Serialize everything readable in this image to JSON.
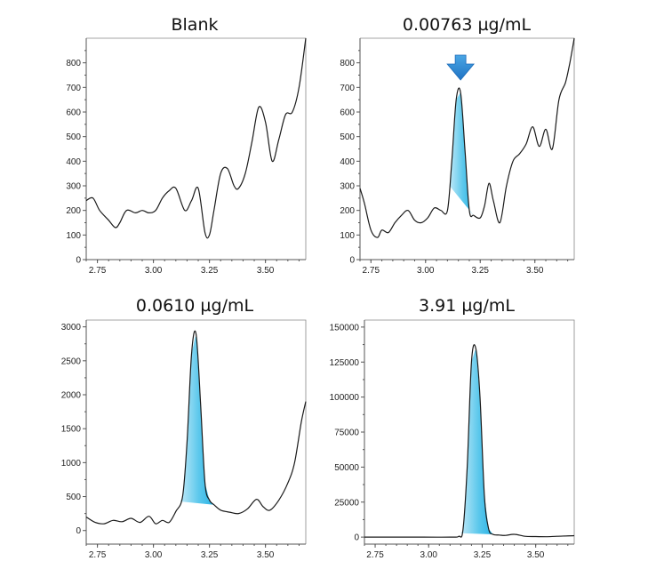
{
  "chart_data": [
    {
      "type": "line",
      "title": "Blank",
      "xlim": [
        2.7,
        3.68
      ],
      "ylim": [
        0,
        900
      ],
      "xticks": [
        2.75,
        3.0,
        3.25,
        3.5
      ],
      "xtick_labels": [
        "2.75",
        "3.00",
        "3.25",
        "3.50"
      ],
      "yticks": [
        0,
        100,
        200,
        300,
        400,
        500,
        600,
        700,
        800
      ],
      "ytick_labels": [
        "0",
        "100",
        "200",
        "300",
        "400",
        "500",
        "600",
        "700",
        "800"
      ],
      "series": [
        {
          "x": [
            2.7,
            2.73,
            2.76,
            2.8,
            2.83,
            2.85,
            2.88,
            2.92,
            2.95,
            2.98,
            3.01,
            3.04,
            3.07,
            3.1,
            3.14,
            3.17,
            3.2,
            3.23,
            3.25,
            3.27,
            3.3,
            3.33,
            3.36,
            3.38,
            3.41,
            3.44,
            3.47,
            3.5,
            3.53,
            3.56,
            3.59,
            3.62,
            3.65,
            3.68
          ],
          "y": [
            240,
            250,
            200,
            160,
            130,
            150,
            200,
            190,
            200,
            190,
            200,
            250,
            280,
            290,
            200,
            240,
            290,
            110,
            100,
            200,
            350,
            370,
            300,
            290,
            350,
            480,
            620,
            560,
            400,
            490,
            590,
            600,
            700,
            900
          ]
        }
      ]
    },
    {
      "type": "line",
      "title": "0.00763 µg/mL",
      "xlim": [
        2.7,
        3.68
      ],
      "ylim": [
        0,
        900
      ],
      "xticks": [
        2.75,
        3.0,
        3.25,
        3.5
      ],
      "xtick_labels": [
        "2.75",
        "3.00",
        "3.25",
        "3.50"
      ],
      "yticks": [
        0,
        100,
        200,
        300,
        400,
        500,
        600,
        700,
        800
      ],
      "ytick_labels": [
        "0",
        "100",
        "200",
        "300",
        "400",
        "500",
        "600",
        "700",
        "800"
      ],
      "peak_range": [
        3.11,
        3.22
      ],
      "marker": "arrow-down",
      "marker_x": 3.16,
      "series": [
        {
          "x": [
            2.7,
            2.72,
            2.75,
            2.78,
            2.8,
            2.83,
            2.86,
            2.89,
            2.92,
            2.95,
            2.98,
            3.01,
            3.04,
            3.07,
            3.1,
            3.12,
            3.14,
            3.16,
            3.18,
            3.2,
            3.22,
            3.25,
            3.27,
            3.29,
            3.31,
            3.34,
            3.37,
            3.4,
            3.43,
            3.46,
            3.49,
            3.52,
            3.55,
            3.58,
            3.61,
            3.64,
            3.66,
            3.68
          ],
          "y": [
            290,
            230,
            120,
            90,
            120,
            110,
            150,
            180,
            200,
            160,
            150,
            170,
            210,
            200,
            200,
            400,
            650,
            680,
            450,
            200,
            180,
            170,
            220,
            310,
            240,
            150,
            300,
            400,
            430,
            470,
            540,
            460,
            530,
            450,
            650,
            720,
            800,
            900
          ]
        }
      ]
    },
    {
      "type": "line",
      "title": "0.0610 µg/mL",
      "xlim": [
        2.7,
        3.68
      ],
      "ylim": [
        -200,
        3100
      ],
      "xticks": [
        2.75,
        3.0,
        3.25,
        3.5
      ],
      "xtick_labels": [
        "2.75",
        "3.00",
        "3.25",
        "3.50"
      ],
      "yticks": [
        0,
        500,
        1000,
        1500,
        2000,
        2500,
        3000
      ],
      "ytick_labels": [
        "0",
        "500",
        "1000",
        "1500",
        "2000",
        "2500",
        "3000"
      ],
      "peak_range": [
        3.12,
        3.27
      ],
      "series": [
        {
          "x": [
            2.7,
            2.74,
            2.78,
            2.82,
            2.86,
            2.9,
            2.94,
            2.98,
            3.01,
            3.04,
            3.07,
            3.1,
            3.13,
            3.15,
            3.17,
            3.19,
            3.21,
            3.23,
            3.25,
            3.27,
            3.3,
            3.34,
            3.38,
            3.42,
            3.46,
            3.49,
            3.52,
            3.56,
            3.6,
            3.63,
            3.66,
            3.68
          ],
          "y": [
            200,
            120,
            100,
            150,
            130,
            180,
            120,
            210,
            100,
            150,
            120,
            280,
            500,
            1300,
            2600,
            2900,
            1900,
            700,
            450,
            380,
            300,
            270,
            250,
            320,
            460,
            350,
            300,
            450,
            700,
            1000,
            1600,
            1900
          ]
        }
      ]
    },
    {
      "type": "line",
      "title": "3.91 µg/mL",
      "xlim": [
        2.7,
        3.68
      ],
      "ylim": [
        -5000,
        155000
      ],
      "xticks": [
        2.75,
        3.0,
        3.25,
        3.5
      ],
      "xtick_labels": [
        "2.75",
        "3.00",
        "3.25",
        "3.50"
      ],
      "yticks": [
        0,
        25000,
        50000,
        75000,
        100000,
        125000,
        150000
      ],
      "ytick_labels": [
        "0",
        "25000",
        "50000",
        "75000",
        "100000",
        "125000",
        "150000"
      ],
      "peak_range": [
        3.15,
        3.3
      ],
      "series": [
        {
          "x": [
            2.7,
            2.9,
            3.1,
            3.14,
            3.16,
            3.18,
            3.2,
            3.22,
            3.24,
            3.26,
            3.28,
            3.3,
            3.33,
            3.36,
            3.4,
            3.45,
            3.5,
            3.55,
            3.6,
            3.68
          ],
          "y": [
            0,
            0,
            0,
            500,
            5000,
            50000,
            125000,
            135000,
            100000,
            30000,
            6000,
            2000,
            1500,
            1200,
            2000,
            600,
            400,
            300,
            600,
            1000
          ]
        }
      ]
    }
  ]
}
